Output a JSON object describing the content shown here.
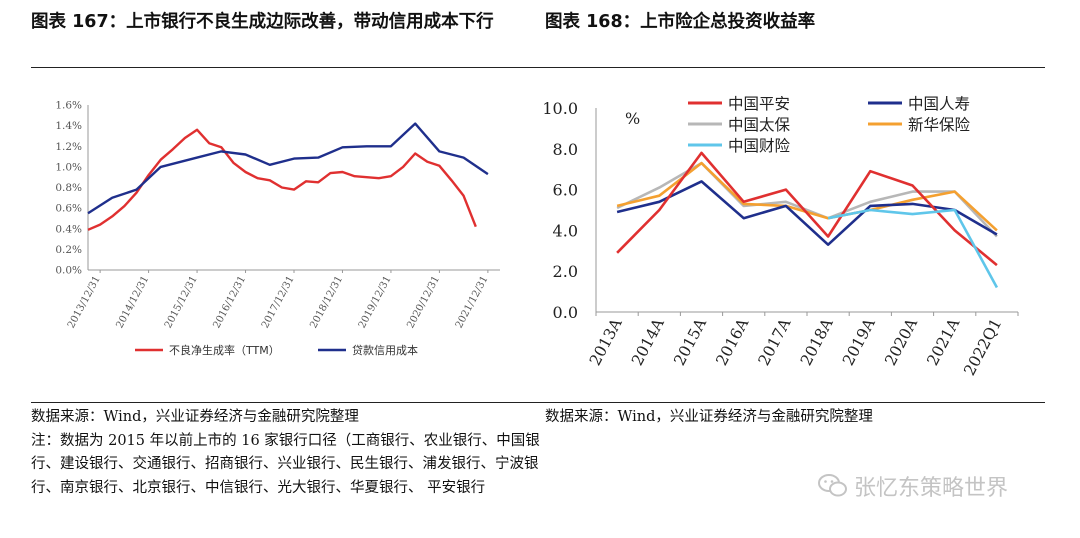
{
  "titles": {
    "left": "图表 167：上市银行不良生成边际改善，带动信用成本下行",
    "right": "图表 168：上市险企总投资收益率"
  },
  "sources": {
    "left_source": "数据来源：Wind，兴业证券经济与金融研究院整理",
    "left_note": "注：数据为 2015 年以前上市的 16 家银行口径（工商银行、农业银行、中国银行、建设银行、交通银行、招商银行、兴业银行、民生银行、浦发银行、宁波银行、南京银行、北京银行、中信银行、光大银行、华夏银行、 平安银行",
    "right_source": "数据来源：Wind，兴业证券经济与金融研究院整理"
  },
  "watermark": {
    "text": "张忆东策略世界",
    "icon": "wechat-icon"
  },
  "chart_data": [
    {
      "type": "line",
      "ylim": [
        0,
        1.6
      ],
      "yticks": [
        "0.0%",
        "0.2%",
        "0.4%",
        "0.6%",
        "0.8%",
        "1.0%",
        "1.2%",
        "1.4%",
        "1.6%"
      ],
      "x_ticks": [
        "2013/12/31",
        "2014/12/31",
        "2015/12/31",
        "2016/12/31",
        "2017/12/31",
        "2018/12/31",
        "2019/12/31",
        "2020/12/31",
        "2021/12/31"
      ],
      "x_range": [
        2013.75,
        2022.25
      ],
      "series": [
        {
          "name": "不良净生成率（TTM）",
          "color": "#e03030",
          "x": [
            2013.75,
            2014.0,
            2014.25,
            2014.5,
            2014.75,
            2015.0,
            2015.25,
            2015.5,
            2015.75,
            2016.0,
            2016.25,
            2016.5,
            2016.75,
            2017.0,
            2017.25,
            2017.5,
            2017.75,
            2018.0,
            2018.25,
            2018.5,
            2018.75,
            2019.0,
            2019.25,
            2019.5,
            2019.75,
            2020.0,
            2020.25,
            2020.5,
            2020.75,
            2021.0,
            2021.25,
            2021.5,
            2021.75,
            2022.0
          ],
          "values": [
            0.39,
            0.44,
            0.52,
            0.62,
            0.75,
            0.92,
            1.07,
            1.17,
            1.28,
            1.36,
            1.23,
            1.19,
            1.04,
            0.95,
            0.89,
            0.87,
            0.8,
            0.78,
            0.86,
            0.85,
            0.94,
            0.95,
            0.91,
            0.9,
            0.89,
            0.91,
            1.0,
            1.13,
            1.05,
            1.01,
            0.87,
            0.72,
            0.42,
            null
          ]
        },
        {
          "name": "贷款信用成本",
          "color": "#1f2f8c",
          "x": [
            2013.75,
            2014.25,
            2014.75,
            2015.25,
            2016.0,
            2016.5,
            2017.0,
            2017.5,
            2018.0,
            2018.5,
            2019.0,
            2019.5,
            2020.0,
            2020.5,
            2021.0,
            2021.5,
            2022.0
          ],
          "values": [
            0.55,
            0.7,
            0.78,
            1.0,
            1.09,
            1.15,
            1.12,
            1.02,
            1.08,
            1.09,
            1.19,
            1.2,
            1.2,
            1.42,
            1.15,
            1.09,
            0.93
          ]
        }
      ],
      "legend": "bottom"
    },
    {
      "type": "line",
      "ylim": [
        0,
        10
      ],
      "ylabel": "%",
      "yticks": [
        "0.0",
        "2.0",
        "4.0",
        "6.0",
        "8.0",
        "10.0"
      ],
      "categories": [
        "2013A",
        "2014A",
        "2015A",
        "2016A",
        "2017A",
        "2018A",
        "2019A",
        "2020A",
        "2021A",
        "2022Q1"
      ],
      "series": [
        {
          "name": "中国平安",
          "color": "#e03030",
          "values": [
            2.9,
            5.0,
            7.8,
            5.4,
            6.0,
            3.7,
            6.9,
            6.2,
            4.0,
            2.3
          ]
        },
        {
          "name": "中国人寿",
          "color": "#1f2f8c",
          "values": [
            4.9,
            5.4,
            6.4,
            4.6,
            5.2,
            3.3,
            5.2,
            5.3,
            5.0,
            3.8
          ]
        },
        {
          "name": "中国太保",
          "color": "#b7b7b7",
          "values": [
            5.1,
            6.1,
            7.3,
            5.2,
            5.4,
            4.6,
            5.4,
            5.9,
            5.9,
            3.7
          ]
        },
        {
          "name": "新华保险",
          "color": "#f4a030",
          "values": [
            5.2,
            5.7,
            7.3,
            5.3,
            5.2,
            4.6,
            5.0,
            5.5,
            5.9,
            4.0
          ]
        },
        {
          "name": "中国财险",
          "color": "#5fc6ea",
          "values": [
            null,
            null,
            null,
            null,
            null,
            4.6,
            5.0,
            4.8,
            5.0,
            1.2
          ]
        }
      ],
      "legend": "top"
    }
  ]
}
